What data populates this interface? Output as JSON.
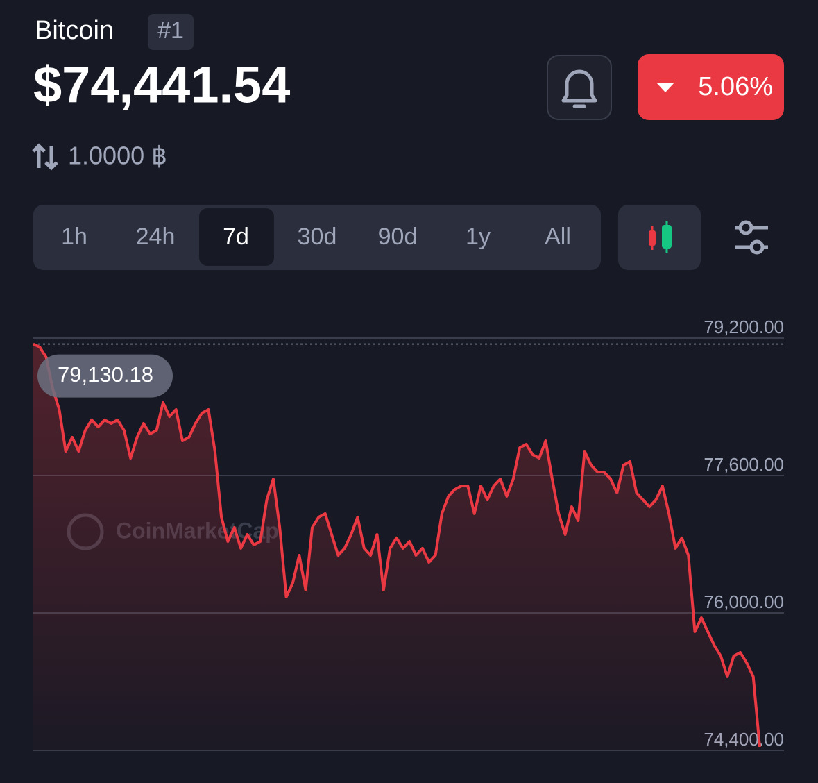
{
  "header": {
    "name": "Bitcoin",
    "rank": "#1",
    "price": "$74,441.54",
    "change": "5.06%",
    "conversion": "1.0000 ฿"
  },
  "timeframes": [
    "1h",
    "24h",
    "7d",
    "30d",
    "90d",
    "1y",
    "All"
  ],
  "selected_timeframe": 2,
  "chart_data": {
    "type": "line",
    "watermark": "CoinMarketCap",
    "color": "#ea3943",
    "high": {
      "value": 79130.18,
      "label": "79,130.18"
    },
    "ylim": [
      74400,
      79200
    ],
    "yticks": [
      {
        "value": 74400,
        "label": "74,400.00"
      },
      {
        "value": 76000,
        "label": "76,000.00"
      },
      {
        "value": 77600,
        "label": "77,600.00"
      },
      {
        "value": 79200,
        "label": "79,200.00"
      }
    ],
    "grid": true,
    "values": [
      79130.18,
      79095,
      78974,
      78610,
      78368,
      77883,
      78045,
      77883,
      78125,
      78247,
      78166,
      78247,
      78206,
      78247,
      78125,
      77802,
      78045,
      78206,
      78085,
      78125,
      78449,
      78287,
      78368,
      78004,
      78045,
      78206,
      78327,
      78368,
      77883,
      77115,
      76832,
      76994,
      76752,
      76913,
      76792,
      76832,
      77317,
      77560,
      76994,
      76186,
      76348,
      76671,
      76267,
      76994,
      77115,
      77156,
      76913,
      76671,
      76752,
      76913,
      77115,
      76752,
      76671,
      76913,
      76267,
      76752,
      76874,
      76752,
      76832,
      76671,
      76752,
      76590,
      76671,
      77156,
      77358,
      77438,
      77479,
      77479,
      77156,
      77479,
      77317,
      77479,
      77560,
      77358,
      77560,
      77923,
      77964,
      77842,
      77802,
      78004,
      77560,
      77156,
      76913,
      77236,
      77075,
      77883,
      77721,
      77640,
      77640,
      77560,
      77398,
      77721,
      77762,
      77398,
      77317,
      77236,
      77317,
      77479,
      77156,
      76752,
      76874,
      76671,
      75782,
      75943,
      75782,
      75620,
      75499,
      75257,
      75499,
      75539,
      75418,
      75257,
      74441.54
    ]
  }
}
